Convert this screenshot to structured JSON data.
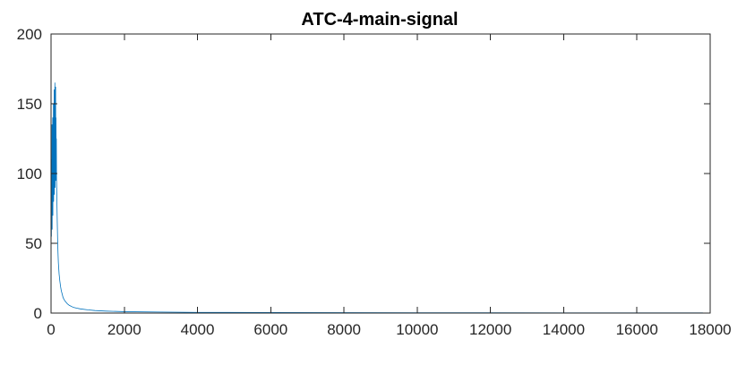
{
  "chart_data": {
    "type": "line",
    "title": "ATC-4-main-signal",
    "xlabel": "",
    "ylabel": "",
    "xlim": [
      0,
      18000
    ],
    "ylim": [
      0,
      200
    ],
    "x_ticks": [
      0,
      2000,
      4000,
      6000,
      8000,
      10000,
      12000,
      14000,
      16000,
      18000
    ],
    "y_ticks": [
      0,
      50,
      100,
      150,
      200
    ],
    "grid": false,
    "legend": "none",
    "series_color": "#0072BD",
    "series": [
      {
        "x": [
          0,
          5,
          10,
          15,
          20,
          25,
          30,
          35,
          40,
          45,
          50,
          55,
          60,
          65,
          70,
          75,
          80,
          85,
          90,
          95,
          100,
          105,
          110,
          115,
          120,
          125,
          130,
          135,
          140,
          145,
          150,
          160,
          170,
          180,
          190,
          200,
          220,
          240,
          260,
          280,
          300,
          330,
          360,
          400,
          450,
          500,
          600,
          700,
          800,
          1000,
          1200,
          1500,
          2000,
          3000,
          4000,
          6000,
          8000,
          10000,
          12000,
          14000,
          16000,
          17800
        ],
        "y": [
          40,
          75,
          55,
          110,
          70,
          135,
          60,
          120,
          90,
          140,
          70,
          125,
          95,
          150,
          80,
          115,
          100,
          160,
          85,
          145,
          110,
          165,
          90,
          155,
          120,
          162,
          95,
          140,
          110,
          125,
          95,
          80,
          65,
          52,
          43,
          36,
          28,
          23,
          19,
          16,
          14,
          11,
          9.5,
          8,
          6.5,
          5.5,
          4.2,
          3.5,
          3.0,
          2.3,
          1.8,
          1.4,
          1.0,
          0.7,
          0.5,
          0.35,
          0.3,
          0.25,
          0.2,
          0.18,
          0.15,
          0.12
        ]
      }
    ]
  }
}
